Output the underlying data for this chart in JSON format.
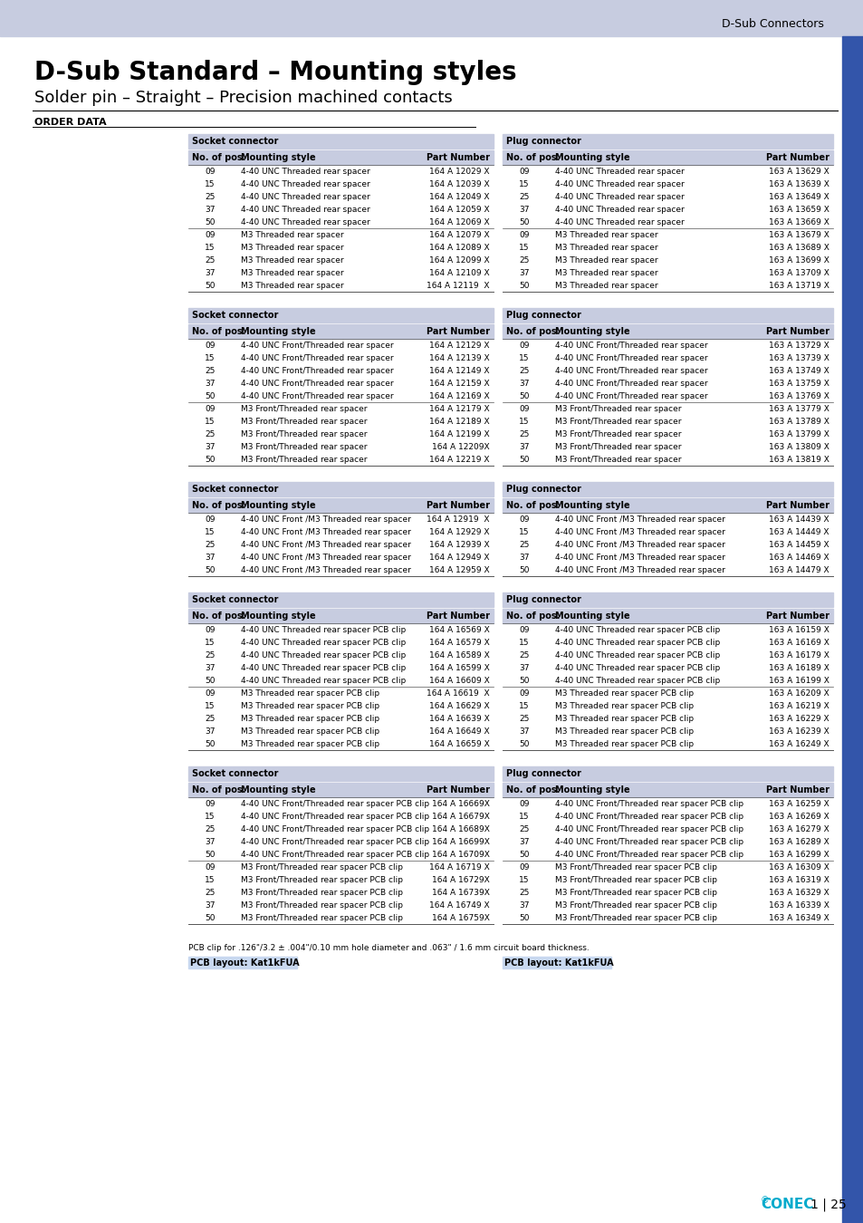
{
  "header_bg": "#c7cce0",
  "header_text_color": "#000000",
  "page_bg": "#ffffff",
  "top_bar_color": "#c7cce0",
  "side_bar_color": "#3355aa",
  "title": "D-Sub Standard – Mounting styles",
  "subtitle": "Solder pin – Straight – Precision machined contacts",
  "order_data_label": "Order data",
  "tables": [
    {
      "socket_header": "Socket connector",
      "plug_header": "Plug connector",
      "col_headers": [
        "No. of pos.",
        "Mounting style",
        "Part Number"
      ],
      "socket_rows": [
        [
          "09",
          "4-40 UNC Threaded rear spacer",
          "164 A 12029 X"
        ],
        [
          "15",
          "4-40 UNC Threaded rear spacer",
          "164 A 12039 X"
        ],
        [
          "25",
          "4-40 UNC Threaded rear spacer",
          "164 A 12049 X"
        ],
        [
          "37",
          "4-40 UNC Threaded rear spacer",
          "164 A 12059 X"
        ],
        [
          "50",
          "4-40 UNC Threaded rear spacer",
          "164 A 12069 X"
        ],
        [
          "09",
          "M3 Threaded rear spacer",
          "164 A 12079 X"
        ],
        [
          "15",
          "M3 Threaded rear spacer",
          "164 A 12089 X"
        ],
        [
          "25",
          "M3 Threaded rear spacer",
          "164 A 12099 X"
        ],
        [
          "37",
          "M3 Threaded rear spacer",
          "164 A 12109 X"
        ],
        [
          "50",
          "M3 Threaded rear spacer",
          "164 A 12119  X"
        ]
      ],
      "plug_rows": [
        [
          "09",
          "4-40 UNC Threaded rear spacer",
          "163 A 13629 X"
        ],
        [
          "15",
          "4-40 UNC Threaded rear spacer",
          "163 A 13639 X"
        ],
        [
          "25",
          "4-40 UNC Threaded rear spacer",
          "163 A 13649 X"
        ],
        [
          "37",
          "4-40 UNC Threaded rear spacer",
          "163 A 13659 X"
        ],
        [
          "50",
          "4-40 UNC Threaded rear spacer",
          "163 A 13669 X"
        ],
        [
          "09",
          "M3 Threaded rear spacer",
          "163 A 13679 X"
        ],
        [
          "15",
          "M3 Threaded rear spacer",
          "163 A 13689 X"
        ],
        [
          "25",
          "M3 Threaded rear spacer",
          "163 A 13699 X"
        ],
        [
          "37",
          "M3 Threaded rear spacer",
          "163 A 13709 X"
        ],
        [
          "50",
          "M3 Threaded rear spacer",
          "163 A 13719 X"
        ]
      ],
      "divider_after": 4
    },
    {
      "socket_header": "Socket connector",
      "plug_header": "Plug connector",
      "col_headers": [
        "No. of pos.",
        "Mounting style",
        "Part Number"
      ],
      "socket_rows": [
        [
          "09",
          "4-40 UNC Front/Threaded rear spacer",
          "164 A 12129 X"
        ],
        [
          "15",
          "4-40 UNC Front/Threaded rear spacer",
          "164 A 12139 X"
        ],
        [
          "25",
          "4-40 UNC Front/Threaded rear spacer",
          "164 A 12149 X"
        ],
        [
          "37",
          "4-40 UNC Front/Threaded rear spacer",
          "164 A 12159 X"
        ],
        [
          "50",
          "4-40 UNC Front/Threaded rear spacer",
          "164 A 12169 X"
        ],
        [
          "09",
          "M3 Front/Threaded rear spacer",
          "164 A 12179 X"
        ],
        [
          "15",
          "M3 Front/Threaded rear spacer",
          "164 A 12189 X"
        ],
        [
          "25",
          "M3 Front/Threaded rear spacer",
          "164 A 12199 X"
        ],
        [
          "37",
          "M3 Front/Threaded rear spacer",
          "164 A 12209X"
        ],
        [
          "50",
          "M3 Front/Threaded rear spacer",
          "164 A 12219 X"
        ]
      ],
      "plug_rows": [
        [
          "09",
          "4-40 UNC Front/Threaded rear spacer",
          "163 A 13729 X"
        ],
        [
          "15",
          "4-40 UNC Front/Threaded rear spacer",
          "163 A 13739 X"
        ],
        [
          "25",
          "4-40 UNC Front/Threaded rear spacer",
          "163 A 13749 X"
        ],
        [
          "37",
          "4-40 UNC Front/Threaded rear spacer",
          "163 A 13759 X"
        ],
        [
          "50",
          "4-40 UNC Front/Threaded rear spacer",
          "163 A 13769 X"
        ],
        [
          "09",
          "M3 Front/Threaded rear spacer",
          "163 A 13779 X"
        ],
        [
          "15",
          "M3 Front/Threaded rear spacer",
          "163 A 13789 X"
        ],
        [
          "25",
          "M3 Front/Threaded rear spacer",
          "163 A 13799 X"
        ],
        [
          "37",
          "M3 Front/Threaded rear spacer",
          "163 A 13809 X"
        ],
        [
          "50",
          "M3 Front/Threaded rear spacer",
          "163 A 13819 X"
        ]
      ],
      "divider_after": 4
    },
    {
      "socket_header": "Socket connector",
      "plug_header": "Plug connector",
      "col_headers": [
        "No. of pos.",
        "Mounting style",
        "Part Number"
      ],
      "socket_rows": [
        [
          "09",
          "4-40 UNC Front /M3 Threaded rear spacer",
          "164 A 12919  X"
        ],
        [
          "15",
          "4-40 UNC Front /M3 Threaded rear spacer",
          "164 A 12929 X"
        ],
        [
          "25",
          "4-40 UNC Front /M3 Threaded rear spacer",
          "164 A 12939 X"
        ],
        [
          "37",
          "4-40 UNC Front /M3 Threaded rear spacer",
          "164 A 12949 X"
        ],
        [
          "50",
          "4-40 UNC Front /M3 Threaded rear spacer",
          "164 A 12959 X"
        ]
      ],
      "plug_rows": [
        [
          "09",
          "4-40 UNC Front /M3 Threaded rear spacer",
          "163 A 14439 X"
        ],
        [
          "15",
          "4-40 UNC Front /M3 Threaded rear spacer",
          "163 A 14449 X"
        ],
        [
          "25",
          "4-40 UNC Front /M3 Threaded rear spacer",
          "163 A 14459 X"
        ],
        [
          "37",
          "4-40 UNC Front /M3 Threaded rear spacer",
          "163 A 14469 X"
        ],
        [
          "50",
          "4-40 UNC Front /M3 Threaded rear spacer",
          "163 A 14479 X"
        ]
      ],
      "divider_after": -1
    },
    {
      "socket_header": "Socket connector",
      "plug_header": "Plug connector",
      "col_headers": [
        "No. of pos.",
        "Mounting style",
        "Part Number"
      ],
      "socket_rows": [
        [
          "09",
          "4-40 UNC Threaded rear spacer PCB clip",
          "164 A 16569 X"
        ],
        [
          "15",
          "4-40 UNC Threaded rear spacer PCB clip",
          "164 A 16579 X"
        ],
        [
          "25",
          "4-40 UNC Threaded rear spacer PCB clip",
          "164 A 16589 X"
        ],
        [
          "37",
          "4-40 UNC Threaded rear spacer PCB clip",
          "164 A 16599 X"
        ],
        [
          "50",
          "4-40 UNC Threaded rear spacer PCB clip",
          "164 A 16609 X"
        ],
        [
          "09",
          "M3 Threaded rear spacer PCB clip",
          "164 A 16619  X"
        ],
        [
          "15",
          "M3 Threaded rear spacer PCB clip",
          "164 A 16629 X"
        ],
        [
          "25",
          "M3 Threaded rear spacer PCB clip",
          "164 A 16639 X"
        ],
        [
          "37",
          "M3 Threaded rear spacer PCB clip",
          "164 A 16649 X"
        ],
        [
          "50",
          "M3 Threaded rear spacer PCB clip",
          "164 A 16659 X"
        ]
      ],
      "plug_rows": [
        [
          "09",
          "4-40 UNC Threaded rear spacer PCB clip",
          "163 A 16159 X"
        ],
        [
          "15",
          "4-40 UNC Threaded rear spacer PCB clip",
          "163 A 16169 X"
        ],
        [
          "25",
          "4-40 UNC Threaded rear spacer PCB clip",
          "163 A 16179 X"
        ],
        [
          "37",
          "4-40 UNC Threaded rear spacer PCB clip",
          "163 A 16189 X"
        ],
        [
          "50",
          "4-40 UNC Threaded rear spacer PCB clip",
          "163 A 16199 X"
        ],
        [
          "09",
          "M3 Threaded rear spacer PCB clip",
          "163 A 16209 X"
        ],
        [
          "15",
          "M3 Threaded rear spacer PCB clip",
          "163 A 16219 X"
        ],
        [
          "25",
          "M3 Threaded rear spacer PCB clip",
          "163 A 16229 X"
        ],
        [
          "37",
          "M3 Threaded rear spacer PCB clip",
          "163 A 16239 X"
        ],
        [
          "50",
          "M3 Threaded rear spacer PCB clip",
          "163 A 16249 X"
        ]
      ],
      "divider_after": 4
    },
    {
      "socket_header": "Socket connector",
      "plug_header": "Plug connector",
      "col_headers": [
        "No. of pos.",
        "Mounting style",
        "Part Number"
      ],
      "socket_rows": [
        [
          "09",
          "4-40 UNC Front/Threaded rear spacer PCB clip",
          "164 A 16669X"
        ],
        [
          "15",
          "4-40 UNC Front/Threaded rear spacer PCB clip",
          "164 A 16679X"
        ],
        [
          "25",
          "4-40 UNC Front/Threaded rear spacer PCB clip",
          "164 A 16689X"
        ],
        [
          "37",
          "4-40 UNC Front/Threaded rear spacer PCB clip",
          "164 A 16699X"
        ],
        [
          "50",
          "4-40 UNC Front/Threaded rear spacer PCB clip",
          "164 A 16709X"
        ],
        [
          "09",
          "M3 Front/Threaded rear spacer PCB clip",
          "164 A 16719 X"
        ],
        [
          "15",
          "M3 Front/Threaded rear spacer PCB clip",
          "164 A 16729X"
        ],
        [
          "25",
          "M3 Front/Threaded rear spacer PCB clip",
          "164 A 16739X"
        ],
        [
          "37",
          "M3 Front/Threaded rear spacer PCB clip",
          "164 A 16749 X"
        ],
        [
          "50",
          "M3 Front/Threaded rear spacer PCB clip",
          "164 A 16759X"
        ]
      ],
      "plug_rows": [
        [
          "09",
          "4-40 UNC Front/Threaded rear spacer PCB clip",
          "163 A 16259 X"
        ],
        [
          "15",
          "4-40 UNC Front/Threaded rear spacer PCB clip",
          "163 A 16269 X"
        ],
        [
          "25",
          "4-40 UNC Front/Threaded rear spacer PCB clip",
          "163 A 16279 X"
        ],
        [
          "37",
          "4-40 UNC Front/Threaded rear spacer PCB clip",
          "163 A 16289 X"
        ],
        [
          "50",
          "4-40 UNC Front/Threaded rear spacer PCB clip",
          "163 A 16299 X"
        ],
        [
          "09",
          "M3 Front/Threaded rear spacer PCB clip",
          "163 A 16309 X"
        ],
        [
          "15",
          "M3 Front/Threaded rear spacer PCB clip",
          "163 A 16319 X"
        ],
        [
          "25",
          "M3 Front/Threaded rear spacer PCB clip",
          "163 A 16329 X"
        ],
        [
          "37",
          "M3 Front/Threaded rear spacer PCB clip",
          "163 A 16339 X"
        ],
        [
          "50",
          "M3 Front/Threaded rear spacer PCB clip",
          "163 A 16349 X"
        ]
      ],
      "divider_after": 4
    }
  ],
  "pcb_note": "PCB clip for .126\"/3.2 ± .004\"/0.10 mm hole diameter and .063\" / 1.6 mm circuit board thickness.",
  "pcb_layout_socket": "PCB layout: Kat1kFUA",
  "pcb_layout_plug": "PCB layout: Kat1kFUA",
  "footer_text": "1 | 25"
}
